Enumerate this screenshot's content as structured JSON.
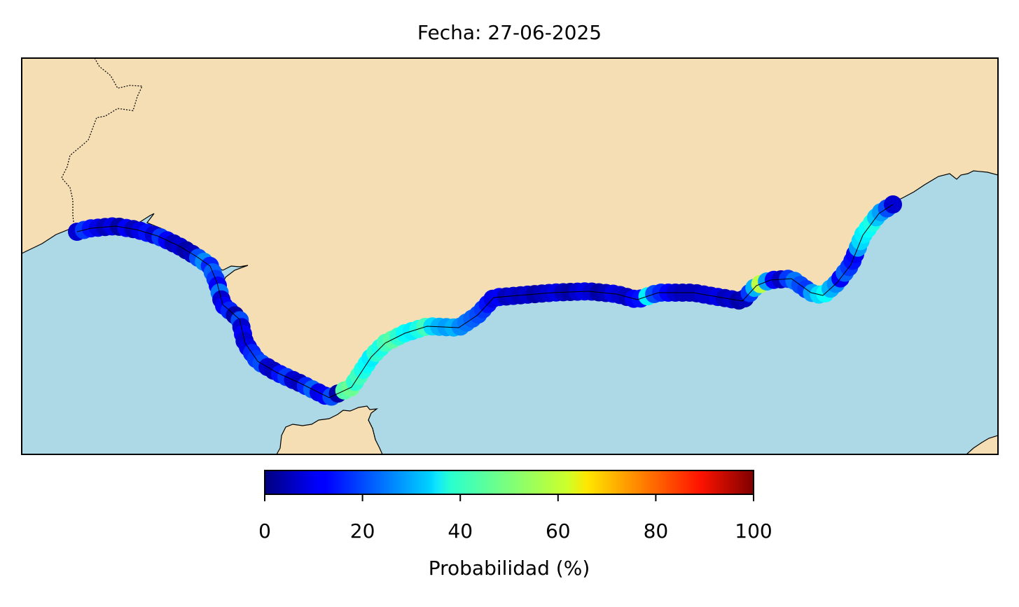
{
  "title": "Fecha: 27-06-2025",
  "colorbar": {
    "label": "Probabilidad (%)",
    "colormap": "jet",
    "range": [
      0,
      100
    ],
    "ticks": [
      "0",
      "20",
      "40",
      "60",
      "80",
      "100"
    ]
  },
  "colors": {
    "land": "#f5deb3",
    "sea": "#add8e6",
    "coastline": "#000000",
    "border": "#000000"
  },
  "markers": {
    "probabilities": [
      8,
      18,
      14,
      10,
      6,
      10,
      4,
      12,
      6,
      10,
      14,
      8,
      18,
      12,
      6,
      8,
      4,
      6,
      20,
      26,
      16,
      22,
      18,
      12,
      24,
      8,
      12,
      16,
      4,
      20,
      8,
      12,
      8,
      10,
      16,
      18,
      20,
      8,
      6,
      14,
      18,
      8,
      6,
      16,
      22,
      10,
      12,
      20,
      4,
      46,
      48,
      42,
      44,
      40,
      38,
      36,
      42,
      40,
      44,
      46,
      42,
      38,
      36,
      40,
      44,
      34,
      30,
      28,
      30,
      26,
      24,
      22,
      20,
      18,
      14,
      10,
      12,
      6,
      8,
      6,
      8,
      4,
      6,
      8,
      10,
      6,
      4,
      8,
      10,
      8,
      4,
      6,
      10,
      8,
      6,
      12,
      14,
      36,
      20,
      16,
      12,
      8,
      6,
      6,
      6,
      8,
      8,
      10,
      6,
      8,
      4,
      6,
      18,
      30,
      56,
      28,
      12,
      6,
      18,
      24,
      20,
      18,
      28,
      34,
      38,
      30,
      26,
      12,
      22,
      18,
      14,
      12,
      28,
      34,
      36,
      38,
      40,
      32,
      28,
      20,
      8
    ]
  }
}
